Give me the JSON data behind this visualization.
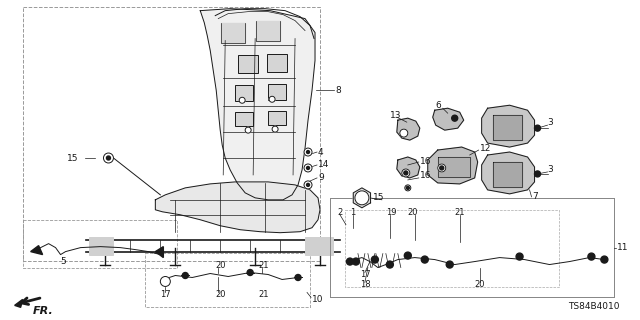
{
  "bg_color": "#ffffff",
  "doc_number": "TS84B4010",
  "fig_width": 6.4,
  "fig_height": 3.2,
  "dpi": 100
}
